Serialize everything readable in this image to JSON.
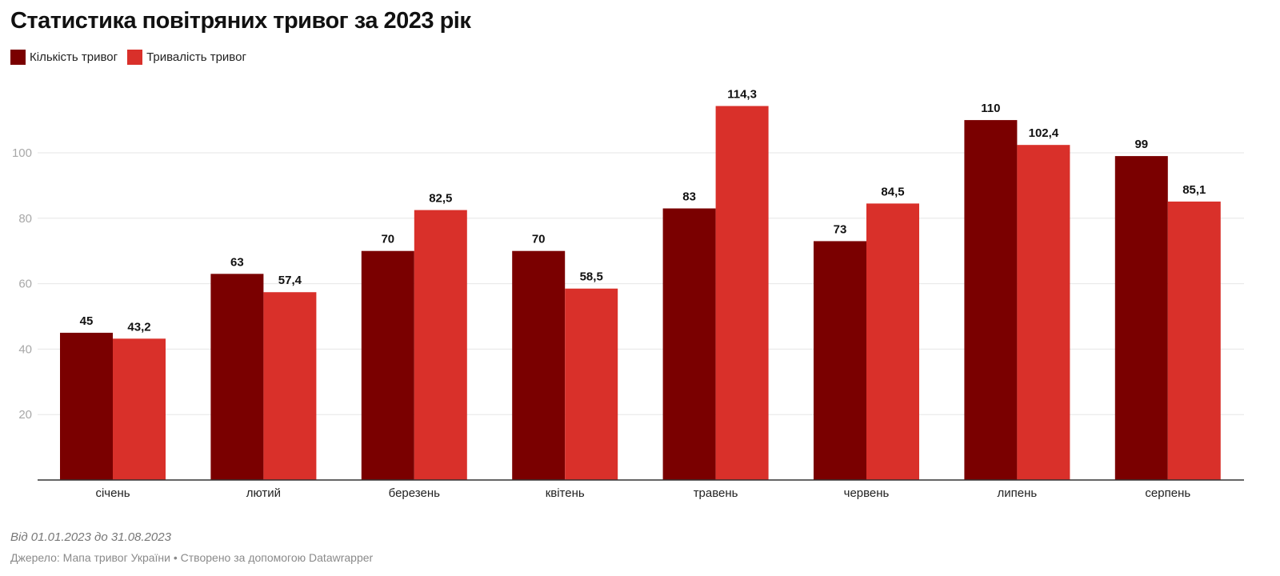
{
  "title": "Статистика повітряних тривог за 2023 рік",
  "notes": "Від 01.01.2023 до 31.08.2023",
  "source": "Джерело: Мапа тривог України • Створено за допомогою Datawrapper",
  "colors": {
    "series_count": "#7a0000",
    "series_duration": "#d9302a",
    "grid": "#e6e6e6",
    "baseline": "#333333"
  },
  "chart_data": {
    "type": "bar",
    "title": "Статистика повітряних тривог за 2023 рік",
    "xlabel": "",
    "ylabel": "",
    "categories": [
      "січень",
      "лютий",
      "березень",
      "квітень",
      "травень",
      "червень",
      "липень",
      "серпень"
    ],
    "series": [
      {
        "name": "Кількість тривог",
        "values": [
          45,
          63,
          70,
          70,
          83,
          73,
          110,
          99
        ],
        "labels": [
          "45",
          "63",
          "70",
          "70",
          "83",
          "73",
          "110",
          "99"
        ],
        "color": "#7a0000"
      },
      {
        "name": "Тривалість тривог",
        "values": [
          43.2,
          57.4,
          82.5,
          58.5,
          114.3,
          84.5,
          102.4,
          85.1
        ],
        "labels": [
          "43,2",
          "57,4",
          "82,5",
          "58,5",
          "114,3",
          "84,5",
          "102,4",
          "85,1"
        ],
        "color": "#d9302a"
      }
    ],
    "yticks": [
      20,
      40,
      60,
      80,
      100
    ],
    "ylim": [
      0,
      120
    ],
    "grid": true,
    "legend_position": "top-left"
  }
}
